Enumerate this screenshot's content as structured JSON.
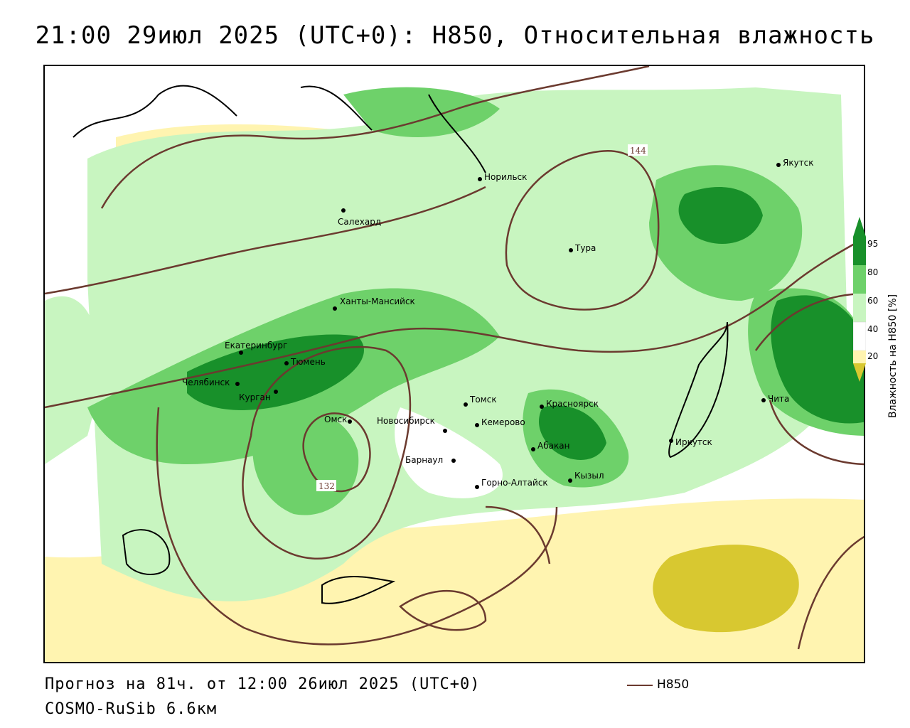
{
  "title": "21:00 29июл 2025 (UTC+0): H850, Относительная влажность",
  "footer": {
    "forecast": "Прогноз на 81ч. от 12:00 26июл 2025 (UTC+0)",
    "model": "COSMO-RuSib 6.6км"
  },
  "legend": {
    "line_label": "H850",
    "line_color": "#6b3a2f"
  },
  "colorbar": {
    "title": "Влажность на H850 [%]",
    "ticks": [
      "95",
      "80",
      "60",
      "40",
      "20"
    ],
    "colors": {
      "very_dry": "#d8c830",
      "dry": "#fff4b0",
      "neutral": "#ffffff",
      "moist": "#c8f5c0",
      "wet": "#6ed16a",
      "saturated": "#18902a"
    }
  },
  "contour_labels": [
    "144",
    "132"
  ],
  "cities": [
    {
      "name": "Якутск"
    },
    {
      "name": "Норильск"
    },
    {
      "name": "Салехард"
    },
    {
      "name": "Тура"
    },
    {
      "name": "Ханты-Мансийск"
    },
    {
      "name": "Екатеринбург"
    },
    {
      "name": "Тюмень"
    },
    {
      "name": "Челябинск"
    },
    {
      "name": "Курган"
    },
    {
      "name": "Омск"
    },
    {
      "name": "Новосибирск"
    },
    {
      "name": "Томск"
    },
    {
      "name": "Кемерово"
    },
    {
      "name": "Красноярск"
    },
    {
      "name": "Абакан"
    },
    {
      "name": "Барнаул"
    },
    {
      "name": "Горно-Алтайск"
    },
    {
      "name": "Кызыл"
    },
    {
      "name": "Иркутск"
    },
    {
      "name": "Чита"
    }
  ]
}
